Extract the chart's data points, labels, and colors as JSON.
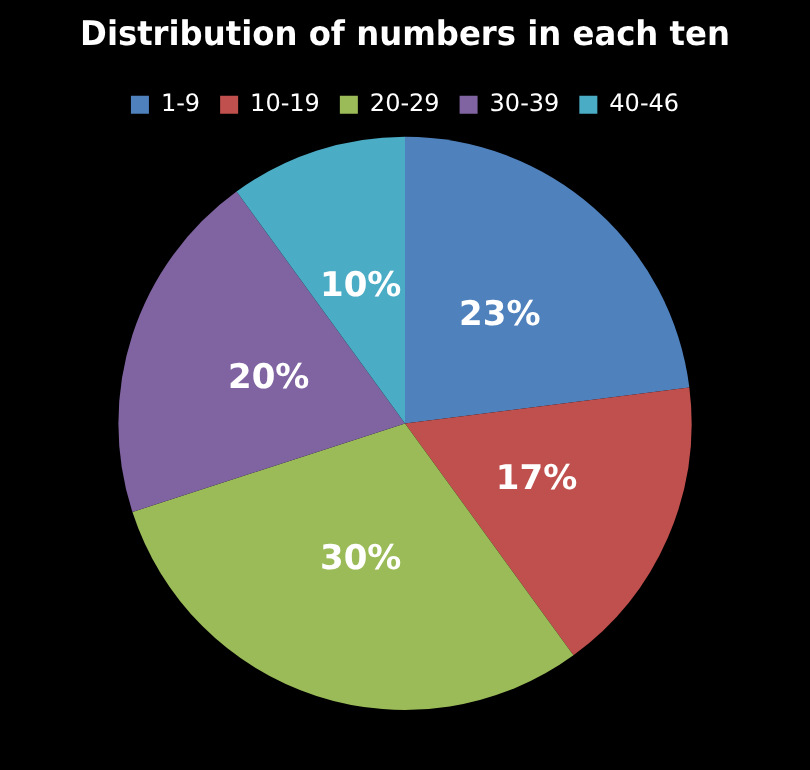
{
  "chart_data": {
    "type": "pie",
    "title": "Distribution of numbers in each ten",
    "categories": [
      "1-9",
      "10-19",
      "20-29",
      "30-39",
      "40-46"
    ],
    "values": [
      23,
      17,
      30,
      20,
      10
    ],
    "colors": [
      "#4f81bd",
      "#c0504d",
      "#9bbb59",
      "#8064a2",
      "#4bacc6"
    ],
    "value_labels": [
      "23%",
      "17%",
      "30%",
      "20%",
      "10%"
    ],
    "legend": "top"
  }
}
